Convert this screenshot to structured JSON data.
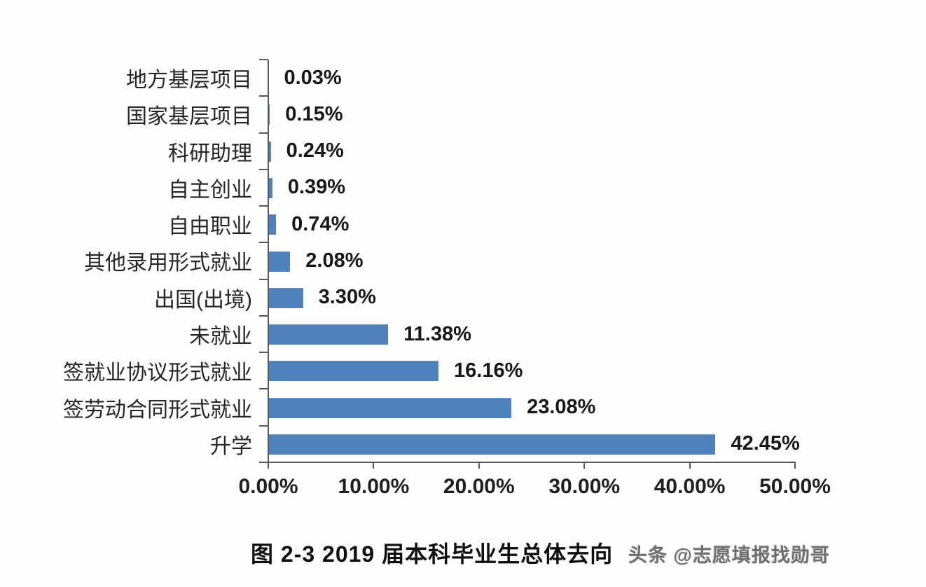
{
  "chart_data": {
    "type": "bar",
    "orientation": "horizontal",
    "categories": [
      "地方基层项目",
      "国家基层项目",
      "科研助理",
      "自主创业",
      "自由职业",
      "其他录用形式就业",
      "出国(出境)",
      "未就业",
      "签就业协议形式就业",
      "签劳动合同形式就业",
      "升学"
    ],
    "values": [
      0.03,
      0.15,
      0.24,
      0.39,
      0.74,
      2.08,
      3.3,
      11.38,
      16.16,
      23.08,
      42.45
    ],
    "value_labels": [
      "0.03%",
      "0.15%",
      "0.24%",
      "0.39%",
      "0.74%",
      "2.08%",
      "3.30%",
      "11.38%",
      "16.16%",
      "23.08%",
      "42.45%"
    ],
    "x_tick_labels": [
      "0.00%",
      "10.00%",
      "20.00%",
      "30.00%",
      "40.00%",
      "50.00%"
    ],
    "xlim": [
      0,
      50
    ],
    "grid": false,
    "legend": false,
    "bar_color": "#4f81bd",
    "title": "图 2-3  2019 届本科毕业生总体去向"
  },
  "caption": {
    "title": "图 2-3  2019 届本科毕业生总体去向",
    "watermark": "头条 @志愿填报找勋哥"
  },
  "colors": {
    "bar": "#4f81bd",
    "axis": "#595959",
    "category_text": "#262626",
    "value_text": "#171717",
    "title_text": "#101010",
    "watermark_text": "#6f6f6f",
    "background": "#fefefe"
  }
}
